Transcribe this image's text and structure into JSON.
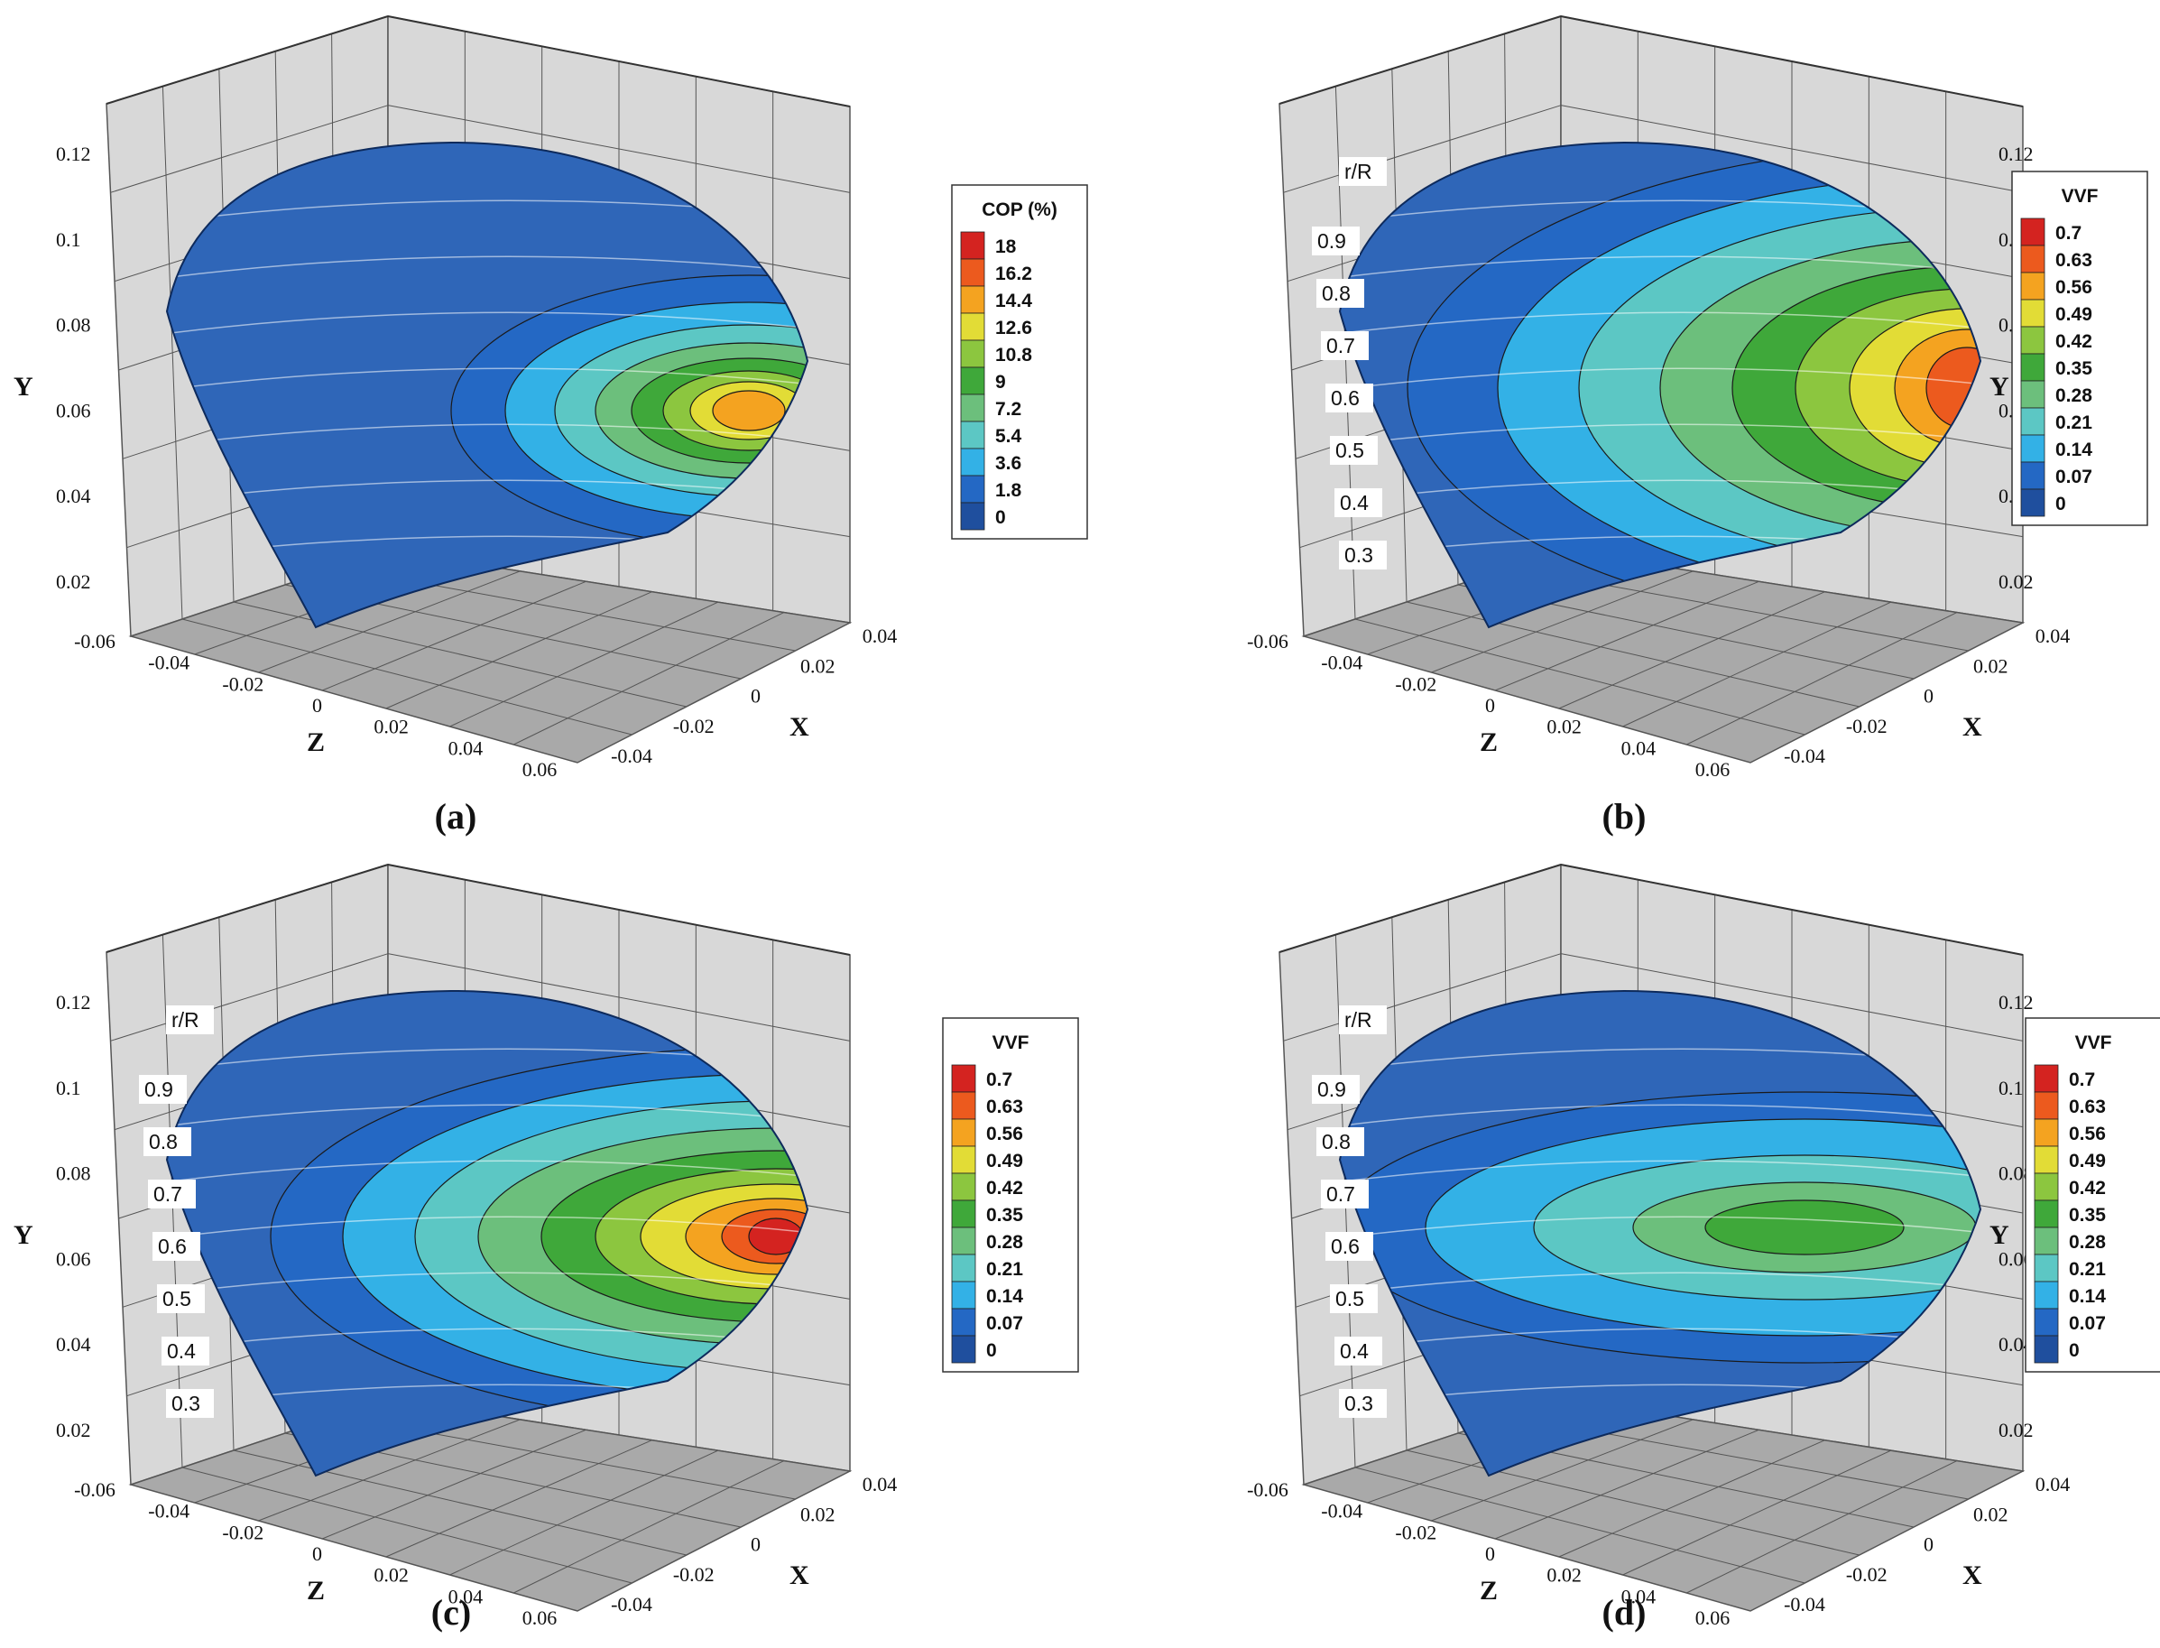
{
  "figure": {
    "panels": [
      {
        "label": "(a)",
        "x_axis": {
          "title": "X",
          "ticks": [
            "-0.04",
            "-0.02",
            "0",
            "0.02",
            "0.04"
          ]
        },
        "y_axis": {
          "title": "Y",
          "ticks": [
            "0.02",
            "0.04",
            "0.06",
            "0.08",
            "0.1",
            "0.12"
          ]
        },
        "z_axis": {
          "title": "Z",
          "ticks": [
            "-0.06",
            "-0.04",
            "-0.02",
            "0",
            "0.02",
            "0.04",
            "0.06"
          ]
        },
        "radial_labels": null,
        "legend": {
          "title": "COP (%)",
          "levels": [
            "18",
            "16.2",
            "14.4",
            "12.6",
            "10.8",
            "9",
            "7.2",
            "5.4",
            "3.6",
            "1.8",
            "0"
          ]
        }
      },
      {
        "label": "(b)",
        "x_axis": {
          "title": "X",
          "ticks": [
            "-0.04",
            "-0.02",
            "0",
            "0.02",
            "0.04"
          ]
        },
        "y_axis": {
          "title": "Y",
          "ticks": [
            "0.02",
            "0.04",
            "0.06",
            "0.08",
            "0.1",
            "0.12"
          ]
        },
        "z_axis": {
          "title": "Z",
          "ticks": [
            "-0.06",
            "-0.04",
            "-0.02",
            "0",
            "0.02",
            "0.04",
            "0.06"
          ]
        },
        "radial_labels": {
          "title": "r/R",
          "values": [
            "0.9",
            "0.8",
            "0.7",
            "0.6",
            "0.5",
            "0.4",
            "0.3"
          ]
        },
        "legend": {
          "title": "VVF",
          "levels": [
            "0.7",
            "0.63",
            "0.56",
            "0.49",
            "0.42",
            "0.35",
            "0.28",
            "0.21",
            "0.14",
            "0.07",
            "0"
          ]
        }
      },
      {
        "label": "(c)",
        "x_axis": {
          "title": "X",
          "ticks": [
            "-0.04",
            "-0.02",
            "0",
            "0.02",
            "0.04"
          ]
        },
        "y_axis": {
          "title": "Y",
          "ticks": [
            "0.02",
            "0.04",
            "0.06",
            "0.08",
            "0.1",
            "0.12"
          ]
        },
        "z_axis": {
          "title": "Z",
          "ticks": [
            "-0.06",
            "-0.04",
            "-0.02",
            "0",
            "0.02",
            "0.04",
            "0.06"
          ]
        },
        "radial_labels": {
          "title": "r/R",
          "values": [
            "0.9",
            "0.8",
            "0.7",
            "0.6",
            "0.5",
            "0.4",
            "0.3"
          ]
        },
        "legend": {
          "title": "VVF",
          "levels": [
            "0.7",
            "0.63",
            "0.56",
            "0.49",
            "0.42",
            "0.35",
            "0.28",
            "0.21",
            "0.14",
            "0.07",
            "0"
          ]
        }
      },
      {
        "label": "(d)",
        "x_axis": {
          "title": "X",
          "ticks": [
            "-0.04",
            "-0.02",
            "0",
            "0.02",
            "0.04"
          ]
        },
        "y_axis": {
          "title": "Y",
          "ticks": [
            "0.02",
            "0.04",
            "0.06",
            "0.08",
            "0.1",
            "0.12"
          ]
        },
        "z_axis": {
          "title": "Z",
          "ticks": [
            "-0.06",
            "-0.04",
            "-0.02",
            "0",
            "0.02",
            "0.04",
            "0.06"
          ]
        },
        "radial_labels": {
          "title": "r/R",
          "values": [
            "0.9",
            "0.8",
            "0.7",
            "0.6",
            "0.5",
            "0.4",
            "0.3"
          ]
        },
        "legend": {
          "title": "VVF",
          "levels": [
            "0.7",
            "0.63",
            "0.56",
            "0.49",
            "0.42",
            "0.35",
            "0.28",
            "0.21",
            "0.14",
            "0.07",
            "0"
          ]
        }
      }
    ],
    "colormap": [
      "#d42320",
      "#ec5a1e",
      "#f4a320",
      "#e2dc36",
      "#8cc63f",
      "#3fa83a",
      "#6cbf7c",
      "#5cc7c4",
      "#33b1e6",
      "#2468c4",
      "#1f4f9e"
    ],
    "colors": {
      "base_blue": "#2f66b8",
      "wall": "#d8d8d8",
      "floor": "#a9a9a9",
      "grid": "#555555"
    }
  },
  "chart_data": [
    {
      "type": "heatmap",
      "panel": "(a)",
      "variable": "COP (%)",
      "levels": [
        0,
        1.8,
        3.6,
        5.4,
        7.2,
        9,
        10.8,
        12.6,
        14.4,
        16.2,
        18
      ],
      "x_ticks": [
        -0.04,
        -0.02,
        0,
        0.02,
        0.04
      ],
      "y_ticks": [
        0.02,
        0.04,
        0.06,
        0.08,
        0.1,
        0.12
      ],
      "z_ticks": [
        -0.06,
        -0.04,
        -0.02,
        0,
        0.02,
        0.04,
        0.06
      ]
    },
    {
      "type": "heatmap",
      "panel": "(b)",
      "variable": "VVF",
      "levels": [
        0,
        0.07,
        0.14,
        0.21,
        0.28,
        0.35,
        0.42,
        0.49,
        0.56,
        0.63,
        0.7
      ],
      "r_over_R": [
        0.3,
        0.4,
        0.5,
        0.6,
        0.7,
        0.8,
        0.9
      ],
      "x_ticks": [
        -0.04,
        -0.02,
        0,
        0.02,
        0.04
      ],
      "y_ticks": [
        0.02,
        0.04,
        0.06,
        0.08,
        0.1,
        0.12
      ],
      "z_ticks": [
        -0.06,
        -0.04,
        -0.02,
        0,
        0.02,
        0.04,
        0.06
      ]
    },
    {
      "type": "heatmap",
      "panel": "(c)",
      "variable": "VVF",
      "levels": [
        0,
        0.07,
        0.14,
        0.21,
        0.28,
        0.35,
        0.42,
        0.49,
        0.56,
        0.63,
        0.7
      ],
      "r_over_R": [
        0.3,
        0.4,
        0.5,
        0.6,
        0.7,
        0.8,
        0.9
      ],
      "x_ticks": [
        -0.04,
        -0.02,
        0,
        0.02,
        0.04
      ],
      "y_ticks": [
        0.02,
        0.04,
        0.06,
        0.08,
        0.1,
        0.12
      ],
      "z_ticks": [
        -0.06,
        -0.04,
        -0.02,
        0,
        0.02,
        0.04,
        0.06
      ]
    },
    {
      "type": "heatmap",
      "panel": "(d)",
      "variable": "VVF",
      "levels": [
        0,
        0.07,
        0.14,
        0.21,
        0.28,
        0.35,
        0.42,
        0.49,
        0.56,
        0.63,
        0.7
      ],
      "r_over_R": [
        0.3,
        0.4,
        0.5,
        0.6,
        0.7,
        0.8,
        0.9
      ],
      "x_ticks": [
        -0.04,
        -0.02,
        0,
        0.02,
        0.04
      ],
      "y_ticks": [
        0.02,
        0.04,
        0.06,
        0.08,
        0.1,
        0.12
      ],
      "z_ticks": [
        -0.06,
        -0.04,
        -0.02,
        0,
        0.02,
        0.04,
        0.06
      ]
    }
  ]
}
